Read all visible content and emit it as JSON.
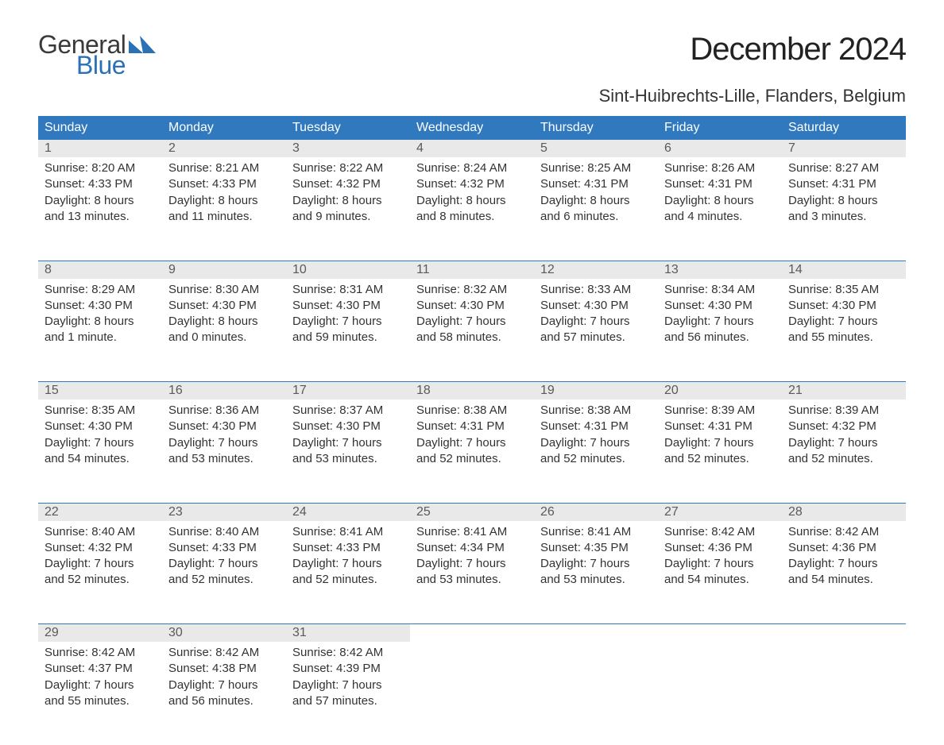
{
  "logo": {
    "text1": "General",
    "text2": "Blue",
    "mark_color": "#2a72b5"
  },
  "title": "December 2024",
  "location": "Sint-Huibrechts-Lille, Flanders, Belgium",
  "colors": {
    "header_bg": "#3179be",
    "header_fg": "#ffffff",
    "daynum_bg": "#e9e9e9",
    "daynum_fg": "#5a5a5a",
    "body_fg": "#333333",
    "separator": "#3179be",
    "background": "#ffffff"
  },
  "typography": {
    "title_fontsize": 40,
    "location_fontsize": 22,
    "header_fontsize": 16,
    "daynum_fontsize": 16,
    "cell_fontsize": 15
  },
  "weekday_headers": [
    "Sunday",
    "Monday",
    "Tuesday",
    "Wednesday",
    "Thursday",
    "Friday",
    "Saturday"
  ],
  "weeks": [
    [
      {
        "n": "1",
        "sunrise": "Sunrise: 8:20 AM",
        "sunset": "Sunset: 4:33 PM",
        "d1": "Daylight: 8 hours",
        "d2": "and 13 minutes."
      },
      {
        "n": "2",
        "sunrise": "Sunrise: 8:21 AM",
        "sunset": "Sunset: 4:33 PM",
        "d1": "Daylight: 8 hours",
        "d2": "and 11 minutes."
      },
      {
        "n": "3",
        "sunrise": "Sunrise: 8:22 AM",
        "sunset": "Sunset: 4:32 PM",
        "d1": "Daylight: 8 hours",
        "d2": "and 9 minutes."
      },
      {
        "n": "4",
        "sunrise": "Sunrise: 8:24 AM",
        "sunset": "Sunset: 4:32 PM",
        "d1": "Daylight: 8 hours",
        "d2": "and 8 minutes."
      },
      {
        "n": "5",
        "sunrise": "Sunrise: 8:25 AM",
        "sunset": "Sunset: 4:31 PM",
        "d1": "Daylight: 8 hours",
        "d2": "and 6 minutes."
      },
      {
        "n": "6",
        "sunrise": "Sunrise: 8:26 AM",
        "sunset": "Sunset: 4:31 PM",
        "d1": "Daylight: 8 hours",
        "d2": "and 4 minutes."
      },
      {
        "n": "7",
        "sunrise": "Sunrise: 8:27 AM",
        "sunset": "Sunset: 4:31 PM",
        "d1": "Daylight: 8 hours",
        "d2": "and 3 minutes."
      }
    ],
    [
      {
        "n": "8",
        "sunrise": "Sunrise: 8:29 AM",
        "sunset": "Sunset: 4:30 PM",
        "d1": "Daylight: 8 hours",
        "d2": "and 1 minute."
      },
      {
        "n": "9",
        "sunrise": "Sunrise: 8:30 AM",
        "sunset": "Sunset: 4:30 PM",
        "d1": "Daylight: 8 hours",
        "d2": "and 0 minutes."
      },
      {
        "n": "10",
        "sunrise": "Sunrise: 8:31 AM",
        "sunset": "Sunset: 4:30 PM",
        "d1": "Daylight: 7 hours",
        "d2": "and 59 minutes."
      },
      {
        "n": "11",
        "sunrise": "Sunrise: 8:32 AM",
        "sunset": "Sunset: 4:30 PM",
        "d1": "Daylight: 7 hours",
        "d2": "and 58 minutes."
      },
      {
        "n": "12",
        "sunrise": "Sunrise: 8:33 AM",
        "sunset": "Sunset: 4:30 PM",
        "d1": "Daylight: 7 hours",
        "d2": "and 57 minutes."
      },
      {
        "n": "13",
        "sunrise": "Sunrise: 8:34 AM",
        "sunset": "Sunset: 4:30 PM",
        "d1": "Daylight: 7 hours",
        "d2": "and 56 minutes."
      },
      {
        "n": "14",
        "sunrise": "Sunrise: 8:35 AM",
        "sunset": "Sunset: 4:30 PM",
        "d1": "Daylight: 7 hours",
        "d2": "and 55 minutes."
      }
    ],
    [
      {
        "n": "15",
        "sunrise": "Sunrise: 8:35 AM",
        "sunset": "Sunset: 4:30 PM",
        "d1": "Daylight: 7 hours",
        "d2": "and 54 minutes."
      },
      {
        "n": "16",
        "sunrise": "Sunrise: 8:36 AM",
        "sunset": "Sunset: 4:30 PM",
        "d1": "Daylight: 7 hours",
        "d2": "and 53 minutes."
      },
      {
        "n": "17",
        "sunrise": "Sunrise: 8:37 AM",
        "sunset": "Sunset: 4:30 PM",
        "d1": "Daylight: 7 hours",
        "d2": "and 53 minutes."
      },
      {
        "n": "18",
        "sunrise": "Sunrise: 8:38 AM",
        "sunset": "Sunset: 4:31 PM",
        "d1": "Daylight: 7 hours",
        "d2": "and 52 minutes."
      },
      {
        "n": "19",
        "sunrise": "Sunrise: 8:38 AM",
        "sunset": "Sunset: 4:31 PM",
        "d1": "Daylight: 7 hours",
        "d2": "and 52 minutes."
      },
      {
        "n": "20",
        "sunrise": "Sunrise: 8:39 AM",
        "sunset": "Sunset: 4:31 PM",
        "d1": "Daylight: 7 hours",
        "d2": "and 52 minutes."
      },
      {
        "n": "21",
        "sunrise": "Sunrise: 8:39 AM",
        "sunset": "Sunset: 4:32 PM",
        "d1": "Daylight: 7 hours",
        "d2": "and 52 minutes."
      }
    ],
    [
      {
        "n": "22",
        "sunrise": "Sunrise: 8:40 AM",
        "sunset": "Sunset: 4:32 PM",
        "d1": "Daylight: 7 hours",
        "d2": "and 52 minutes."
      },
      {
        "n": "23",
        "sunrise": "Sunrise: 8:40 AM",
        "sunset": "Sunset: 4:33 PM",
        "d1": "Daylight: 7 hours",
        "d2": "and 52 minutes."
      },
      {
        "n": "24",
        "sunrise": "Sunrise: 8:41 AM",
        "sunset": "Sunset: 4:33 PM",
        "d1": "Daylight: 7 hours",
        "d2": "and 52 minutes."
      },
      {
        "n": "25",
        "sunrise": "Sunrise: 8:41 AM",
        "sunset": "Sunset: 4:34 PM",
        "d1": "Daylight: 7 hours",
        "d2": "and 53 minutes."
      },
      {
        "n": "26",
        "sunrise": "Sunrise: 8:41 AM",
        "sunset": "Sunset: 4:35 PM",
        "d1": "Daylight: 7 hours",
        "d2": "and 53 minutes."
      },
      {
        "n": "27",
        "sunrise": "Sunrise: 8:42 AM",
        "sunset": "Sunset: 4:36 PM",
        "d1": "Daylight: 7 hours",
        "d2": "and 54 minutes."
      },
      {
        "n": "28",
        "sunrise": "Sunrise: 8:42 AM",
        "sunset": "Sunset: 4:36 PM",
        "d1": "Daylight: 7 hours",
        "d2": "and 54 minutes."
      }
    ],
    [
      {
        "n": "29",
        "sunrise": "Sunrise: 8:42 AM",
        "sunset": "Sunset: 4:37 PM",
        "d1": "Daylight: 7 hours",
        "d2": "and 55 minutes."
      },
      {
        "n": "30",
        "sunrise": "Sunrise: 8:42 AM",
        "sunset": "Sunset: 4:38 PM",
        "d1": "Daylight: 7 hours",
        "d2": "and 56 minutes."
      },
      {
        "n": "31",
        "sunrise": "Sunrise: 8:42 AM",
        "sunset": "Sunset: 4:39 PM",
        "d1": "Daylight: 7 hours",
        "d2": "and 57 minutes."
      },
      null,
      null,
      null,
      null
    ]
  ]
}
